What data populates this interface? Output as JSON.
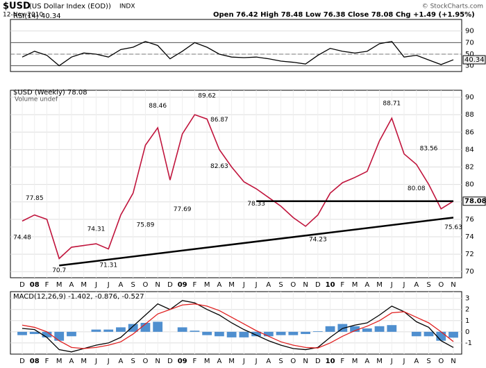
{
  "header": {
    "symbol": "$USD",
    "name": "(US Dollar Index (EOD))",
    "exchange": "INDX",
    "date": "12-Nov-2010",
    "quote": "Open 76.42 High 78.48 Low 76.38 Close 78.08 Chg +1.49 (+1.95%)",
    "credit": "© StockCharts.com"
  },
  "chart_data": [
    {
      "type": "line",
      "title": "RSI(14) 40.34",
      "ylim": [
        20,
        110
      ],
      "yticks": [
        30,
        50,
        70,
        90
      ],
      "overbought": 70,
      "oversold": 30,
      "midline": 50,
      "series": [
        {
          "name": "RSI(14)",
          "color": "#000000",
          "values": [
            45,
            55,
            48,
            30,
            45,
            52,
            50,
            45,
            58,
            62,
            72,
            65,
            42,
            55,
            70,
            62,
            50,
            45,
            44,
            45,
            42,
            38,
            36,
            33,
            48,
            60,
            55,
            52,
            55,
            68,
            72,
            45,
            48,
            40,
            32,
            40.34
          ]
        }
      ],
      "last_label": 40.34
    },
    {
      "type": "line",
      "title": "$USD (Weekly) 78.08",
      "subtitle": "Volume undef",
      "ylim": [
        69.3,
        90.8
      ],
      "yticks": [
        70,
        72,
        74,
        76,
        78,
        80,
        82,
        84,
        86,
        88,
        90
      ],
      "categories": [
        "D",
        "08",
        "F",
        "M",
        "A",
        "M",
        "J",
        "J",
        "A",
        "S",
        "O",
        "N",
        "D",
        "09",
        "F",
        "M",
        "A",
        "M",
        "J",
        "J",
        "A",
        "S",
        "O",
        "N",
        "D",
        "10",
        "F",
        "M",
        "A",
        "M",
        "J",
        "J",
        "A",
        "S",
        "O",
        "N"
      ],
      "series": [
        {
          "name": "$USD",
          "color": "#c0143c",
          "values": [
            75.8,
            76.5,
            76.0,
            71.5,
            72.8,
            73.0,
            73.2,
            72.6,
            76.5,
            79.0,
            84.5,
            86.5,
            80.5,
            85.8,
            88.0,
            87.5,
            84.0,
            82.0,
            80.3,
            79.5,
            78.5,
            77.5,
            76.2,
            75.2,
            76.5,
            79.0,
            80.2,
            80.8,
            81.5,
            85.0,
            87.6,
            83.5,
            82.3,
            80.0,
            77.2,
            78.08
          ]
        }
      ],
      "last_label": 78.08,
      "annotations": [
        {
          "category_index": 0,
          "value": 74.48
        },
        {
          "category_index": 1,
          "value": 77.85
        },
        {
          "category_index": 3,
          "value": 70.7
        },
        {
          "category_index": 6,
          "value": 74.31
        },
        {
          "category_index": 7,
          "value": 71.31
        },
        {
          "category_index": 10,
          "value": 75.89
        },
        {
          "category_index": 11,
          "value": 88.46
        },
        {
          "category_index": 13,
          "value": 77.69
        },
        {
          "category_index": 15,
          "value": 89.62
        },
        {
          "category_index": 16,
          "value": 86.87
        },
        {
          "category_index": 16,
          "value": 82.63
        },
        {
          "category_index": 19,
          "value": 78.33
        },
        {
          "category_index": 24,
          "value": 74.23
        },
        {
          "category_index": 30,
          "value": 88.71
        },
        {
          "category_index": 33,
          "value": 83.56
        },
        {
          "category_index": 32,
          "value": 80.08
        },
        {
          "category_index": 35,
          "value": 75.63
        }
      ],
      "trendlines": [
        {
          "from_index": 19,
          "from_value": 78.08,
          "to_index": 35,
          "to_value": 78.08
        },
        {
          "from_index": 3,
          "from_value": 70.7,
          "to_index": 35,
          "to_value": 76.2
        }
      ]
    },
    {
      "type": "combo",
      "title": "MACD(12,26,9) -1.402, -0.876, -0.527",
      "ylim": [
        -2.0,
        3.6
      ],
      "yticks": [
        -1,
        0,
        1,
        2,
        3
      ],
      "categories": [
        "D",
        "08",
        "F",
        "M",
        "A",
        "M",
        "J",
        "J",
        "A",
        "S",
        "O",
        "N",
        "D",
        "09",
        "F",
        "M",
        "A",
        "M",
        "J",
        "J",
        "A",
        "S",
        "O",
        "N",
        "D",
        "10",
        "F",
        "M",
        "A",
        "M",
        "J",
        "J",
        "A",
        "S",
        "O",
        "N"
      ],
      "series": [
        {
          "name": "Histogram",
          "style": "bar",
          "color": "#4f8fcf",
          "values": [
            -0.3,
            -0.2,
            -0.5,
            -0.8,
            -0.4,
            0,
            0.2,
            0.2,
            0.4,
            0.7,
            0.8,
            0.9,
            0,
            0.4,
            0.1,
            -0.3,
            -0.4,
            -0.5,
            -0.5,
            -0.4,
            -0.4,
            -0.3,
            -0.3,
            -0.2,
            0.05,
            0.5,
            0.7,
            0.5,
            0.3,
            0.5,
            0.6,
            0,
            -0.4,
            -0.4,
            -0.8,
            -0.527
          ]
        },
        {
          "name": "MACD",
          "style": "line",
          "color": "#000000",
          "values": [
            0.3,
            0.2,
            -0.5,
            -1.6,
            -1.8,
            -1.5,
            -1.2,
            -1.0,
            -0.5,
            0.5,
            1.5,
            2.5,
            2.0,
            2.8,
            2.6,
            2.0,
            1.5,
            0.8,
            0.2,
            -0.3,
            -0.8,
            -1.2,
            -1.5,
            -1.6,
            -1.4,
            -0.5,
            0.3,
            0.6,
            0.8,
            1.5,
            2.3,
            1.8,
            0.9,
            0.4,
            -0.8,
            -1.402
          ]
        },
        {
          "name": "Signal",
          "style": "line",
          "color": "#e02020",
          "values": [
            0.6,
            0.4,
            0.0,
            -0.8,
            -1.4,
            -1.5,
            -1.4,
            -1.2,
            -0.9,
            -0.2,
            0.7,
            1.6,
            2.0,
            2.4,
            2.5,
            2.3,
            1.9,
            1.3,
            0.7,
            0.1,
            -0.4,
            -0.9,
            -1.2,
            -1.4,
            -1.45,
            -1.0,
            -0.4,
            0.1,
            0.5,
            1.0,
            1.7,
            1.8,
            1.3,
            0.8,
            0.0,
            -0.876
          ]
        }
      ]
    }
  ]
}
